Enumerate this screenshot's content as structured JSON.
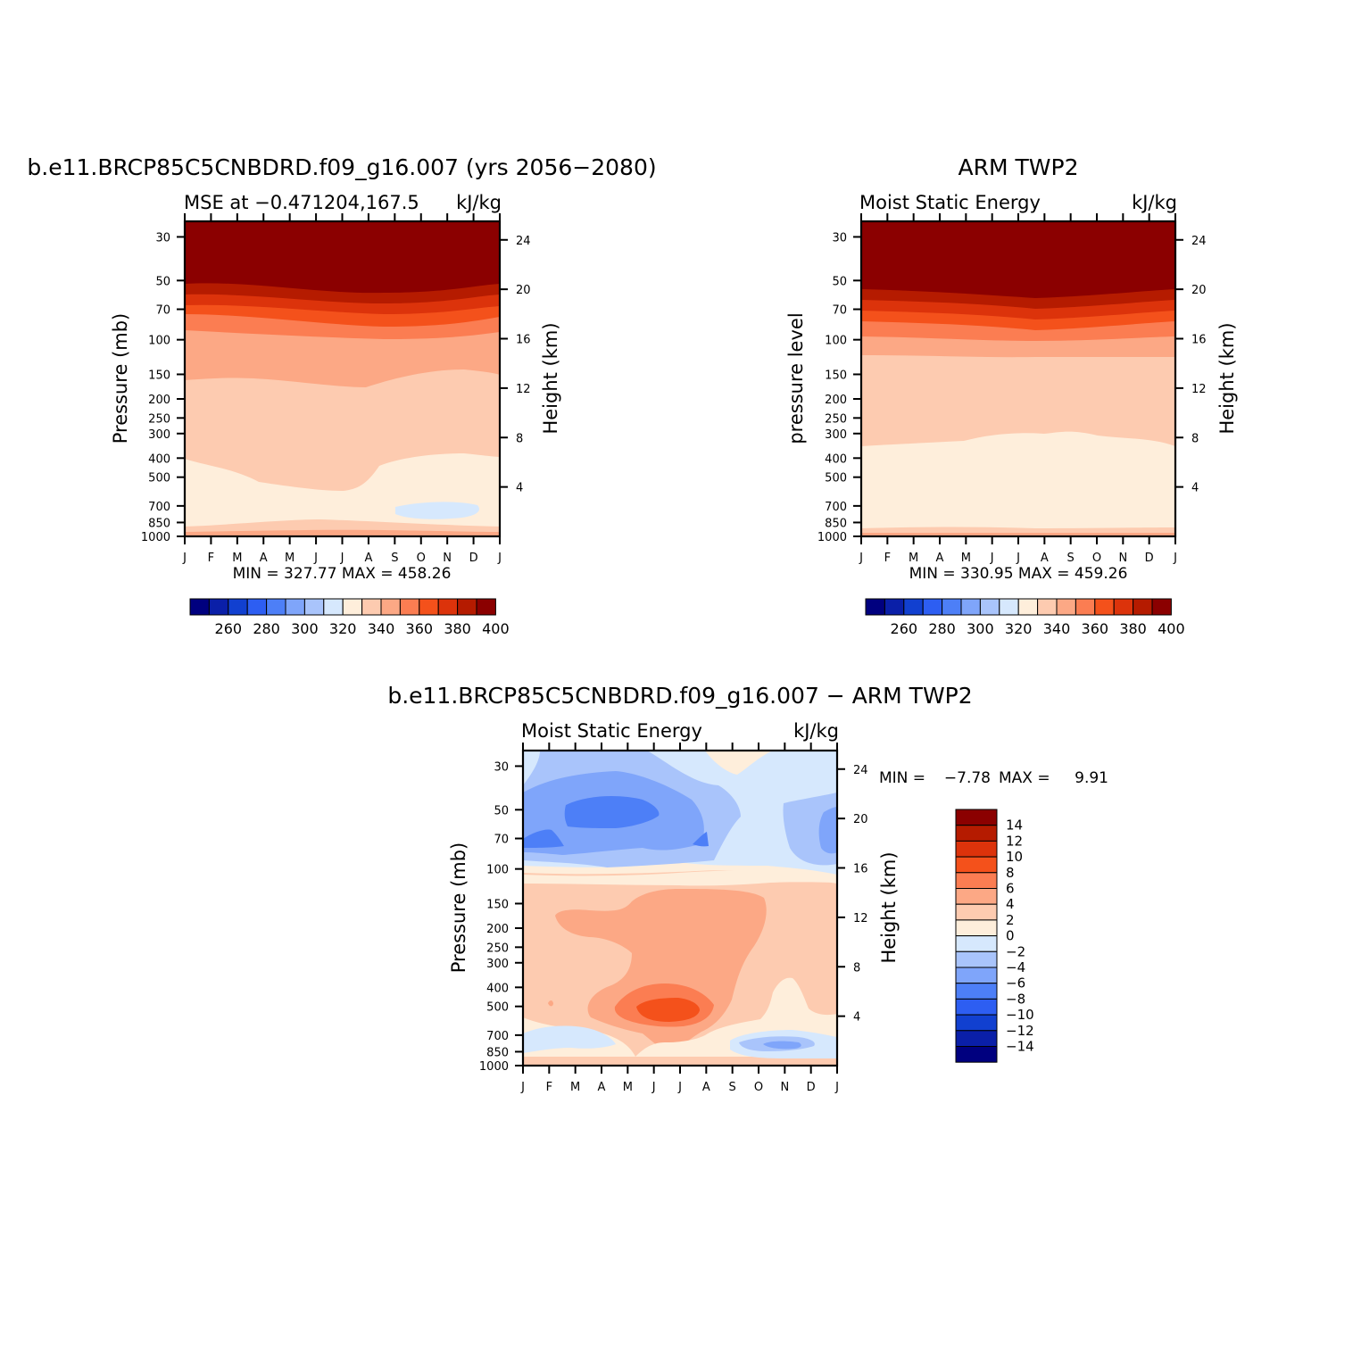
{
  "chart_data": [
    {
      "type": "heatmap",
      "title": "b.e11.BRCP85C5CNBDRD.f09_g16.007 (yrs 2056−2080)",
      "left_subtitle": "MSE at −0.471204,167.5",
      "right_subtitle": "kJ/kg",
      "ylabel": "Pressure (mb)",
      "ylabel_right": "Height (km)",
      "x_ticks": [
        "J",
        "F",
        "M",
        "A",
        "M",
        "J",
        "J",
        "A",
        "S",
        "O",
        "N",
        "D",
        "J"
      ],
      "y_ticks": [
        "30",
        "50",
        "70",
        "100",
        "150",
        "200",
        "250",
        "300",
        "400",
        "500",
        "700",
        "850",
        "1000"
      ],
      "y_ticks_right": [
        "24",
        "20",
        "16",
        "12",
        "8",
        "4"
      ],
      "stats": "MIN = 327.77 MAX = 458.26",
      "colorbar_labels": [
        "260",
        "280",
        "300",
        "320",
        "340",
        "360",
        "380",
        "400"
      ],
      "y_scale": "log pressure",
      "contour_boundaries_hPa": {
        "above_400": [
          55,
          60,
          69,
          80,
          95,
          163,
          410
        ],
        "months": [
          "J",
          "F",
          "M",
          "A",
          "M",
          "J",
          "J",
          "A",
          "S",
          "O",
          "N",
          "D",
          "J"
        ],
        "by_month": [
          [
            55,
            60,
            69,
            80,
            95,
            163,
            410
          ],
          [
            54,
            59,
            68,
            79,
            96,
            160,
            450
          ],
          [
            53,
            59,
            68,
            80,
            97,
            158,
            520
          ],
          [
            54,
            60,
            70,
            81,
            98,
            157,
            540
          ],
          [
            56,
            62,
            72,
            83,
            99,
            158,
            570
          ],
          [
            58,
            64,
            74,
            85,
            100,
            166,
            620
          ],
          [
            59,
            65,
            75,
            86,
            101,
            172,
            630
          ],
          [
            59,
            65,
            75,
            86,
            101,
            172,
            580
          ],
          [
            58,
            64,
            74,
            85,
            100,
            162,
            470
          ],
          [
            58,
            64,
            73,
            84,
            99,
            150,
            430
          ],
          [
            57,
            63,
            72,
            83,
            98,
            146,
            405
          ],
          [
            55,
            61,
            70,
            81,
            96,
            150,
            410
          ],
          [
            53,
            58,
            67,
            78,
            94,
            155,
            420
          ]
        ],
        "note_levels_kJkg": [
          400,
          390,
          380,
          370,
          360,
          350,
          340,
          330
        ]
      }
    },
    {
      "type": "heatmap",
      "title": "ARM TWP2",
      "left_subtitle": "Moist Static Energy",
      "right_subtitle": "kJ/kg",
      "ylabel": "pressure level",
      "ylabel_right": "Height (km)",
      "x_ticks": [
        "J",
        "F",
        "M",
        "A",
        "M",
        "J",
        "J",
        "A",
        "S",
        "O",
        "N",
        "D",
        "J"
      ],
      "y_ticks": [
        "30",
        "50",
        "70",
        "100",
        "150",
        "200",
        "250",
        "300",
        "400",
        "500",
        "700",
        "850",
        "1000"
      ],
      "y_ticks_right": [
        "24",
        "20",
        "16",
        "12",
        "8",
        "4"
      ],
      "stats": "MIN = 330.95 MAX = 459.26",
      "colorbar_labels": [
        "260",
        "280",
        "300",
        "320",
        "340",
        "360",
        "380",
        "400"
      ],
      "y_scale": "log pressure"
    },
    {
      "type": "heatmap",
      "title": "b.e11.BRCP85C5CNBDRD.f09_g16.007 − ARM TWP2",
      "left_subtitle": "Moist Static Energy",
      "right_subtitle": "kJ/kg",
      "ylabel": "Pressure (mb)",
      "ylabel_right": "Height (km)",
      "x_ticks": [
        "J",
        "F",
        "M",
        "A",
        "M",
        "J",
        "J",
        "A",
        "S",
        "O",
        "N",
        "D",
        "J"
      ],
      "y_ticks": [
        "30",
        "50",
        "70",
        "100",
        "150",
        "200",
        "250",
        "300",
        "400",
        "500",
        "700",
        "850",
        "1000"
      ],
      "y_ticks_right": [
        "24",
        "20",
        "16",
        "12",
        "8",
        "4"
      ],
      "stats_min_label": "MIN =",
      "stats_min": "−7.78",
      "stats_max_label": "MAX =",
      "stats_max": "9.91",
      "colorbar_labels": [
        "14",
        "12",
        "10",
        "8",
        "6",
        "4",
        "2",
        "0",
        "−2",
        "−4",
        "−6",
        "−8",
        "−10",
        "−12",
        "−14"
      ],
      "y_scale": "log pressure"
    }
  ],
  "colors": {
    "abs_palette": [
      "#00007f",
      "#0a1fa8",
      "#1140d0",
      "#2d5ef2",
      "#4d7ff7",
      "#7fa5fa",
      "#a9c4fb",
      "#d6e8fd",
      "#feeedb",
      "#fdcbb0",
      "#fca885",
      "#fb7d52",
      "#f4511b",
      "#dc330b",
      "#b51b00",
      "#8b0000"
    ],
    "diff_palette": [
      "#8b0000",
      "#b51b00",
      "#dc330b",
      "#f4511b",
      "#fb7d52",
      "#fca885",
      "#fdcbb0",
      "#feeedb",
      "#d6e8fd",
      "#a9c4fb",
      "#7fa5fa",
      "#4d7ff7",
      "#2d5ef2",
      "#1140d0",
      "#0a1fa8",
      "#00007f"
    ]
  }
}
